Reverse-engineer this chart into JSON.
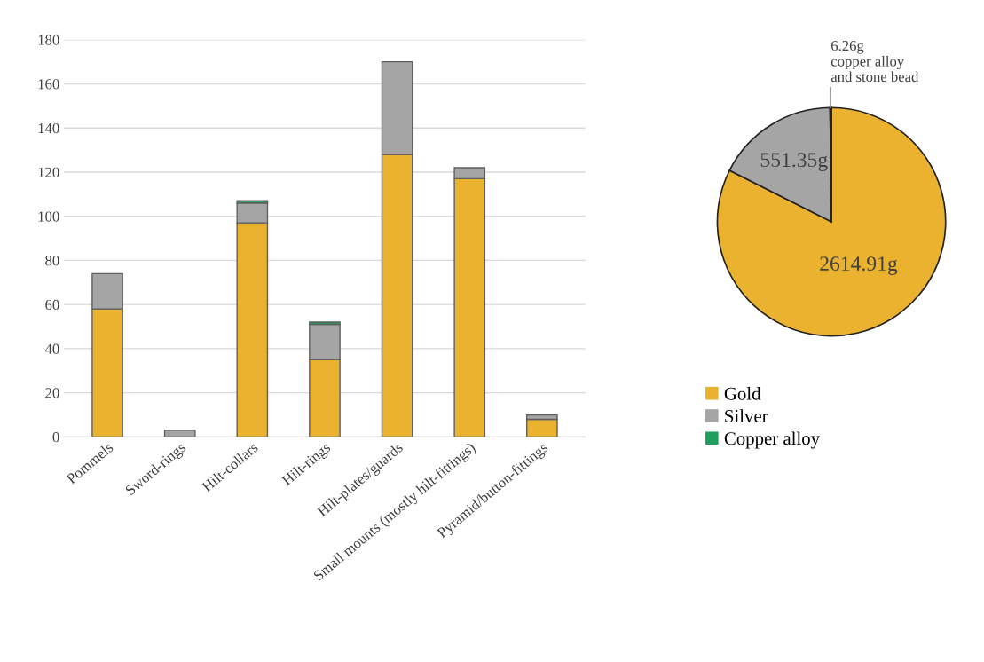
{
  "chart_data": [
    {
      "type": "bar",
      "stacked": true,
      "categories": [
        "Pommels",
        "Sword-rings",
        "Hilt-collars",
        "Hilt-rings",
        "Hilt-plates/guards",
        "Small mounts (mostly hilt-fittings)",
        "Pyramid/button-fittings"
      ],
      "series": [
        {
          "color": "#eab22e",
          "values": [
            58,
            0,
            97,
            35,
            128,
            117,
            8
          ]
        },
        {
          "color": "#a5a5a5",
          "values": [
            16,
            3,
            9,
            16,
            42,
            5,
            2
          ]
        },
        {
          "color": "#1f9e5e",
          "values": [
            0,
            0,
            1,
            1,
            0,
            0,
            0
          ]
        }
      ],
      "ylim": [
        0,
        180
      ],
      "yticks": [
        0,
        20,
        40,
        60,
        80,
        100,
        120,
        140,
        160,
        180
      ],
      "grid": "y",
      "legend": false
    },
    {
      "type": "pie",
      "categories": [
        "Gold",
        "Silver",
        "Copper alloy"
      ],
      "values": [
        2614.91,
        551.35,
        6.26
      ],
      "colors": [
        "#eab22e",
        "#a5a5a5",
        "#1f9e5e"
      ],
      "value_labels": [
        "2614.91g",
        "551.35g",
        "6.26g\ncopper alloy\nand stone bead"
      ],
      "legend": "bottom"
    }
  ]
}
